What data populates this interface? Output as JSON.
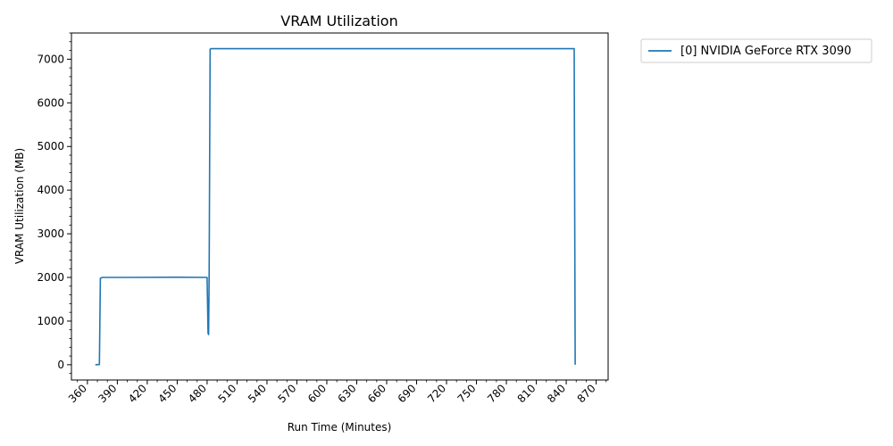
{
  "chart_data": {
    "type": "line",
    "title": "VRAM Utilization",
    "xlabel": "Run Time (Minutes)",
    "ylabel": "VRAM Utilization (MB)",
    "xlim": [
      344,
      882
    ],
    "ylim": [
      -350,
      7600
    ],
    "x_major_ticks": [
      360,
      390,
      420,
      450,
      480,
      510,
      540,
      570,
      600,
      630,
      660,
      690,
      720,
      750,
      780,
      810,
      840,
      870
    ],
    "x_tick_labels": [
      "360",
      "390",
      "420",
      "450",
      "480",
      "510",
      "540",
      "570",
      "600",
      "630",
      "660",
      "690",
      "720",
      "750",
      "780",
      "810",
      "840",
      "870"
    ],
    "x_minor_step": 10,
    "y_major_ticks": [
      0,
      1000,
      2000,
      3000,
      4000,
      5000,
      6000,
      7000
    ],
    "y_tick_labels": [
      "0",
      "1000",
      "2000",
      "3000",
      "4000",
      "5000",
      "6000",
      "7000"
    ],
    "grid": false,
    "legend": {
      "placement": "outside-top-right"
    },
    "series": [
      {
        "name": "[0] NVIDIA GeForce RTX 3090",
        "color": "#1f77b4",
        "x": [
          368,
          372,
          373,
          375,
          400,
          450,
          480,
          481,
          481.5,
          482,
          483,
          484,
          600,
          700,
          800,
          848,
          849
        ],
        "y": [
          0,
          5,
          1980,
          2000,
          2000,
          2005,
          2000,
          720,
          690,
          2000,
          7230,
          7240,
          7240,
          7240,
          7240,
          7240,
          0
        ]
      }
    ]
  }
}
